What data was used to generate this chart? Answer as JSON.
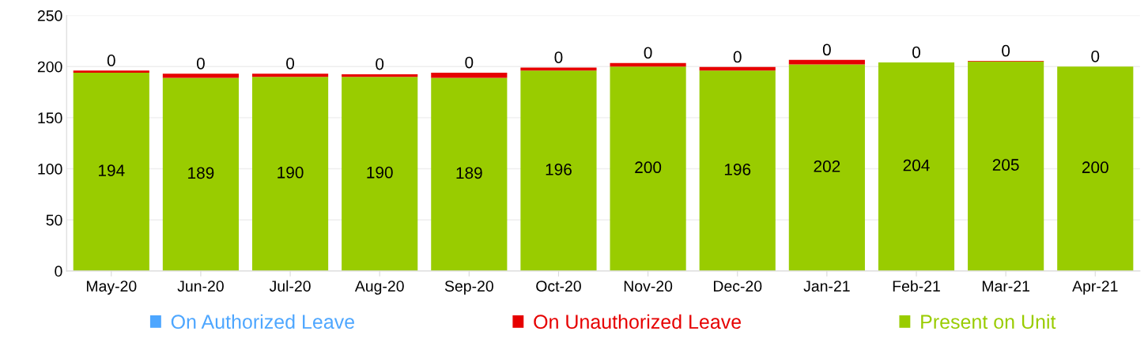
{
  "chart_data": {
    "type": "bar",
    "stacked": true,
    "categories": [
      "May-20",
      "Jun-20",
      "Jul-20",
      "Aug-20",
      "Sep-20",
      "Oct-20",
      "Nov-20",
      "Dec-20",
      "Jan-21",
      "Feb-21",
      "Mar-21",
      "Apr-21"
    ],
    "series": [
      {
        "name": "Present on Unit",
        "color": "#99cc00",
        "values": [
          194,
          189,
          190,
          190,
          189,
          196,
          200,
          196,
          202,
          204,
          205,
          200
        ],
        "value_labels": [
          "194",
          "189",
          "190",
          "190",
          "189",
          "196",
          "200",
          "196",
          "202",
          "204",
          "205",
          "200"
        ]
      },
      {
        "name": "On Unauthorized Leave",
        "color": "#e60000",
        "values": [
          2,
          4,
          3,
          2.5,
          5,
          3,
          3.5,
          3.5,
          4.5,
          null,
          0.5,
          null
        ]
      },
      {
        "name": "On Authorized Leave",
        "color": "#4da6ff",
        "values": [
          0,
          0,
          0,
          0,
          0,
          0,
          0,
          0,
          0,
          0,
          0,
          0
        ],
        "value_labels": [
          "0",
          "0",
          "0",
          "0",
          "0",
          "0",
          "0",
          "0",
          "0",
          "0",
          "0",
          "0"
        ]
      }
    ],
    "ylim": [
      0,
      250
    ],
    "yticks": [
      0,
      50,
      100,
      150,
      200,
      250
    ],
    "grid": "y",
    "legend": "bottom"
  }
}
